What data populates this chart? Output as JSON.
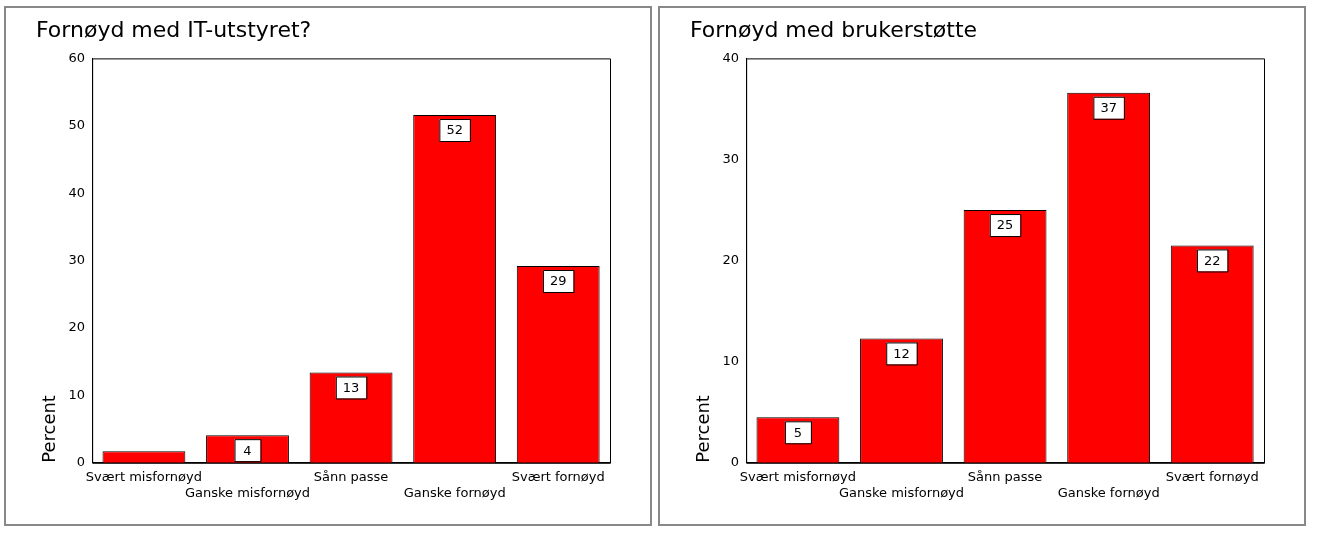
{
  "chart_data": [
    {
      "type": "bar",
      "title": "Fornøyd med IT-utstyret?",
      "ylabel": "Percent",
      "categories": [
        "Svært misfornøyd",
        "Ganske misfornøyd",
        "Sånn passe",
        "Ganske fornøyd",
        "Svært fornøyd"
      ],
      "values": [
        1.7,
        4.1,
        13.4,
        51.6,
        29.2
      ],
      "value_labels": [
        null,
        "4",
        "13",
        "52",
        "29"
      ],
      "color": "#ff0000",
      "ylim": [
        0,
        60
      ],
      "yticks": [
        0,
        10,
        20,
        30,
        40,
        50,
        60
      ],
      "grid": false,
      "legend": false
    },
    {
      "type": "bar",
      "title": "Fornøyd med brukerstøtte",
      "ylabel": "Percent",
      "categories": [
        "Svært misfornøyd",
        "Ganske misfornøyd",
        "Sånn passe",
        "Ganske fornøyd",
        "Svært fornøyd"
      ],
      "values": [
        4.5,
        12.3,
        25.0,
        36.6,
        21.5
      ],
      "value_labels": [
        "5",
        "12",
        "25",
        "37",
        "22"
      ],
      "color": "#ff0000",
      "ylim": [
        0,
        40
      ],
      "yticks": [
        0,
        10,
        20,
        30,
        40
      ],
      "grid": false,
      "legend": false
    }
  ]
}
